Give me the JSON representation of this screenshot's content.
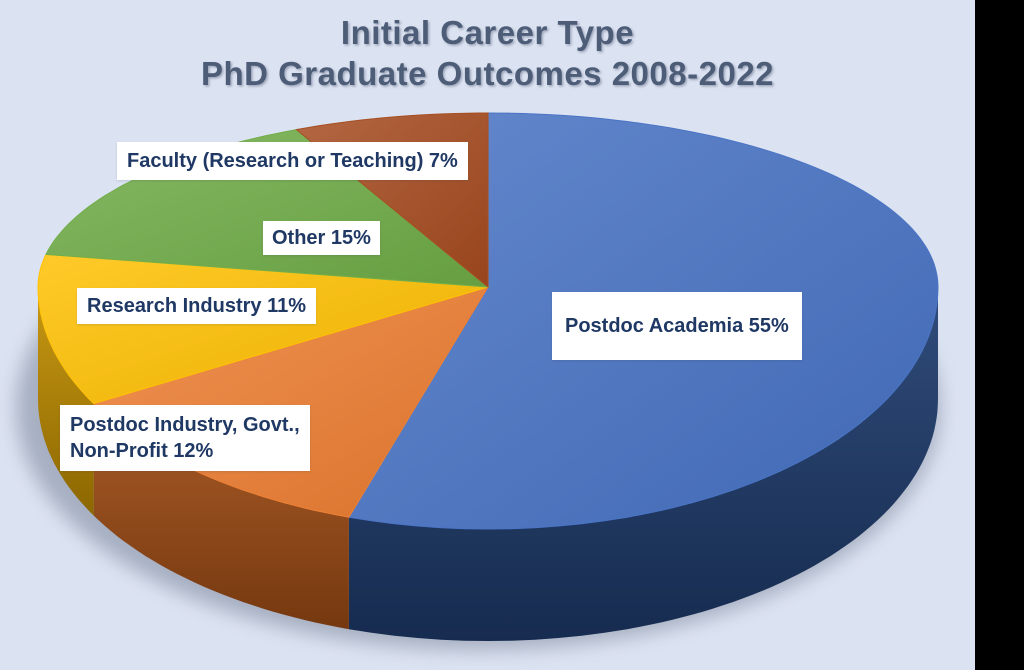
{
  "title": {
    "line1": "Initial Career Type",
    "line2": "PhD Graduate Outcomes 2008-2022"
  },
  "chart_data": {
    "type": "pie",
    "style": "3d-perspective",
    "unit": "percent",
    "start": "12-o-clock",
    "direction": "clockwise",
    "total": 100,
    "slices": [
      {
        "name": "Postdoc Academia",
        "value": 55,
        "label_text": "Postdoc Academia 55%",
        "color": "#4671C4",
        "side_color": "#1E3C6E"
      },
      {
        "name": "Postdoc Industry, Govt., Non-Profit",
        "value": 12,
        "label_text": "Postdoc Industry, Govt.,\n Non-Profit 12%",
        "color": "#ED7D31",
        "side_color": "#A34E15"
      },
      {
        "name": "Research Industry",
        "value": 11,
        "label_text": "Research Industry 11%",
        "color": "#FFC000",
        "side_color": "#C28F00"
      },
      {
        "name": "Other",
        "value": 15,
        "label_text": "Other 15%",
        "color": "#6FAC47",
        "side_color": "#4F7A2E"
      },
      {
        "name": "Faculty (Research or Teaching)",
        "value": 7,
        "label_text": "Faculty (Research or Teaching) 7%",
        "color": "#A54A1E",
        "side_color": "#7A3210"
      }
    ],
    "palette": {
      "background": "#DBE2F1",
      "label_box": "#FFFFFF",
      "label_text": "#1F3864",
      "title_text": "#4D5C77",
      "letterbox": "#000000",
      "shadow": "#7D879C"
    }
  }
}
